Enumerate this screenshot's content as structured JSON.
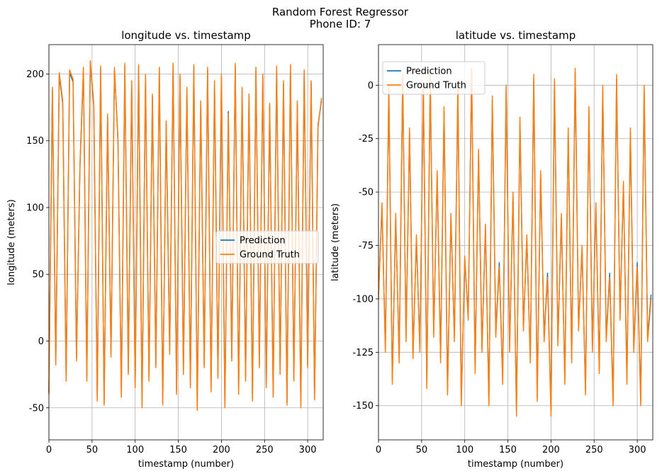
{
  "figure": {
    "suptitle_line1": "Random Forest Regressor",
    "suptitle_line2": "Phone ID: 7"
  },
  "colors": {
    "prediction": "#1f77b4",
    "ground_truth": "#ff7f0e",
    "grid": "#b0b0b0",
    "axes": "#000000"
  },
  "chart_data": [
    {
      "type": "line",
      "title": "longitude vs. timestamp",
      "xlabel": "timestamp (number)",
      "ylabel": "longitude (meters)",
      "xlim": [
        0,
        318
      ],
      "ylim": [
        -74,
        222
      ],
      "xticks": [
        0,
        50,
        100,
        150,
        200,
        250,
        300
      ],
      "yticks": [
        -50,
        0,
        50,
        100,
        150,
        200
      ],
      "grid": true,
      "legend_position": "center-right",
      "series": [
        {
          "name": "Prediction",
          "color": "#1f77b4"
        },
        {
          "name": "Ground Truth",
          "color": "#ff7f0e"
        }
      ],
      "x": [
        0,
        4,
        8,
        12,
        16,
        20,
        24,
        28,
        32,
        36,
        40,
        44,
        48,
        52,
        56,
        60,
        64,
        68,
        72,
        76,
        80,
        84,
        88,
        92,
        96,
        100,
        104,
        108,
        112,
        116,
        120,
        124,
        128,
        132,
        136,
        140,
        144,
        148,
        152,
        156,
        160,
        164,
        168,
        172,
        176,
        180,
        184,
        188,
        192,
        196,
        200,
        204,
        208,
        212,
        216,
        220,
        224,
        228,
        232,
        236,
        240,
        244,
        248,
        252,
        256,
        260,
        264,
        268,
        272,
        276,
        280,
        284,
        288,
        292,
        296,
        300,
        304,
        308,
        312,
        316
      ],
      "values": {
        "Ground Truth": [
          -40,
          190,
          -18,
          201,
          180,
          -30,
          203,
          196,
          -15,
          132,
          205,
          -30,
          210,
          178,
          -45,
          206,
          -48,
          170,
          -12,
          205,
          150,
          -42,
          208,
          -25,
          195,
          -35,
          207,
          -50,
          200,
          -30,
          185,
          -20,
          205,
          -48,
          165,
          -10,
          208,
          -40,
          200,
          -25,
          190,
          -35,
          207,
          -52,
          180,
          -20,
          205,
          -38,
          195,
          -28,
          200,
          -50,
          170,
          -15,
          208,
          -40,
          190,
          -30,
          185,
          -45,
          205,
          -20,
          200,
          -35,
          178,
          -42,
          206,
          -25,
          195,
          -48,
          207,
          -30,
          180,
          -50,
          203,
          -20,
          195,
          -44,
          160,
          182
        ],
        "Prediction": [
          -38,
          188,
          -16,
          199,
          178,
          -28,
          201,
          194,
          -13,
          130,
          203,
          -28,
          208,
          176,
          -43,
          204,
          -46,
          168,
          -10,
          203,
          152,
          -40,
          206,
          -23,
          193,
          -33,
          205,
          -48,
          198,
          -28,
          183,
          -18,
          203,
          -46,
          163,
          -8,
          206,
          -38,
          198,
          -23,
          188,
          -33,
          205,
          -50,
          178,
          -18,
          203,
          -36,
          193,
          -26,
          198,
          -48,
          172,
          -13,
          206,
          -38,
          188,
          -28,
          183,
          -43,
          203,
          -18,
          198,
          -33,
          176,
          -40,
          204,
          -23,
          193,
          -46,
          205,
          -28,
          178,
          -48,
          201,
          -18,
          193,
          -42,
          162,
          180
        ]
      }
    },
    {
      "type": "line",
      "title": "latitude vs. timestamp",
      "xlabel": "timestamp (number)",
      "ylabel": "latitude (meters)",
      "xlim": [
        0,
        318
      ],
      "ylim": [
        -166,
        19
      ],
      "xticks": [
        0,
        50,
        100,
        150,
        200,
        250,
        300
      ],
      "yticks": [
        -150,
        -125,
        -100,
        -75,
        -50,
        -25,
        0
      ],
      "grid": true,
      "legend_position": "top-left",
      "series": [
        {
          "name": "Prediction",
          "color": "#1f77b4"
        },
        {
          "name": "Ground Truth",
          "color": "#ff7f0e"
        }
      ],
      "x": [
        0,
        4,
        8,
        12,
        16,
        20,
        24,
        28,
        32,
        36,
        40,
        44,
        48,
        52,
        56,
        60,
        64,
        68,
        72,
        76,
        80,
        84,
        88,
        92,
        96,
        100,
        104,
        108,
        112,
        116,
        120,
        124,
        128,
        132,
        136,
        140,
        144,
        148,
        152,
        156,
        160,
        164,
        168,
        172,
        176,
        180,
        184,
        188,
        192,
        196,
        200,
        204,
        208,
        212,
        216,
        220,
        224,
        228,
        232,
        236,
        240,
        244,
        248,
        252,
        256,
        260,
        264,
        268,
        272,
        276,
        280,
        284,
        288,
        292,
        296,
        300,
        304,
        308,
        312,
        316
      ],
      "values": {
        "Ground Truth": [
          -100,
          -55,
          -125,
          0,
          -140,
          -60,
          -130,
          5,
          -120,
          -20,
          -128,
          -70,
          -125,
          0,
          -142,
          5,
          -118,
          -40,
          -130,
          -10,
          -145,
          -60,
          -120,
          0,
          -150,
          -80,
          -110,
          8,
          -135,
          -30,
          -125,
          -65,
          -150,
          -5,
          -118,
          -85,
          -140,
          0,
          -125,
          -50,
          -155,
          -15,
          -115,
          -70,
          -130,
          5,
          -148,
          -40,
          -120,
          -90,
          -155,
          3,
          -122,
          -60,
          -140,
          -20,
          -130,
          8,
          -115,
          -75,
          -145,
          -10,
          -125,
          -55,
          -135,
          0,
          -120,
          -90,
          -150,
          5,
          -110,
          -45,
          -140,
          -20,
          -125,
          -85,
          -150,
          0,
          -120,
          -100
        ],
        "Prediction": [
          -98,
          -57,
          -123,
          -2,
          -138,
          -62,
          -128,
          3,
          -118,
          -22,
          -126,
          -72,
          -123,
          -2,
          -140,
          3,
          -116,
          -42,
          -128,
          -12,
          -143,
          -62,
          -118,
          -2,
          -148,
          -82,
          -108,
          6,
          -133,
          -32,
          -123,
          -67,
          -148,
          -7,
          -116,
          -83,
          -138,
          -2,
          -123,
          -52,
          -153,
          -17,
          -113,
          -72,
          -128,
          3,
          -146,
          -42,
          -118,
          -88,
          -153,
          1,
          -120,
          -62,
          -138,
          -22,
          -128,
          6,
          -113,
          -77,
          -143,
          -12,
          -123,
          -57,
          -133,
          -2,
          -118,
          -88,
          -148,
          3,
          -108,
          -47,
          -138,
          -22,
          -123,
          -83,
          -148,
          -2,
          -118,
          -98
        ]
      }
    }
  ]
}
